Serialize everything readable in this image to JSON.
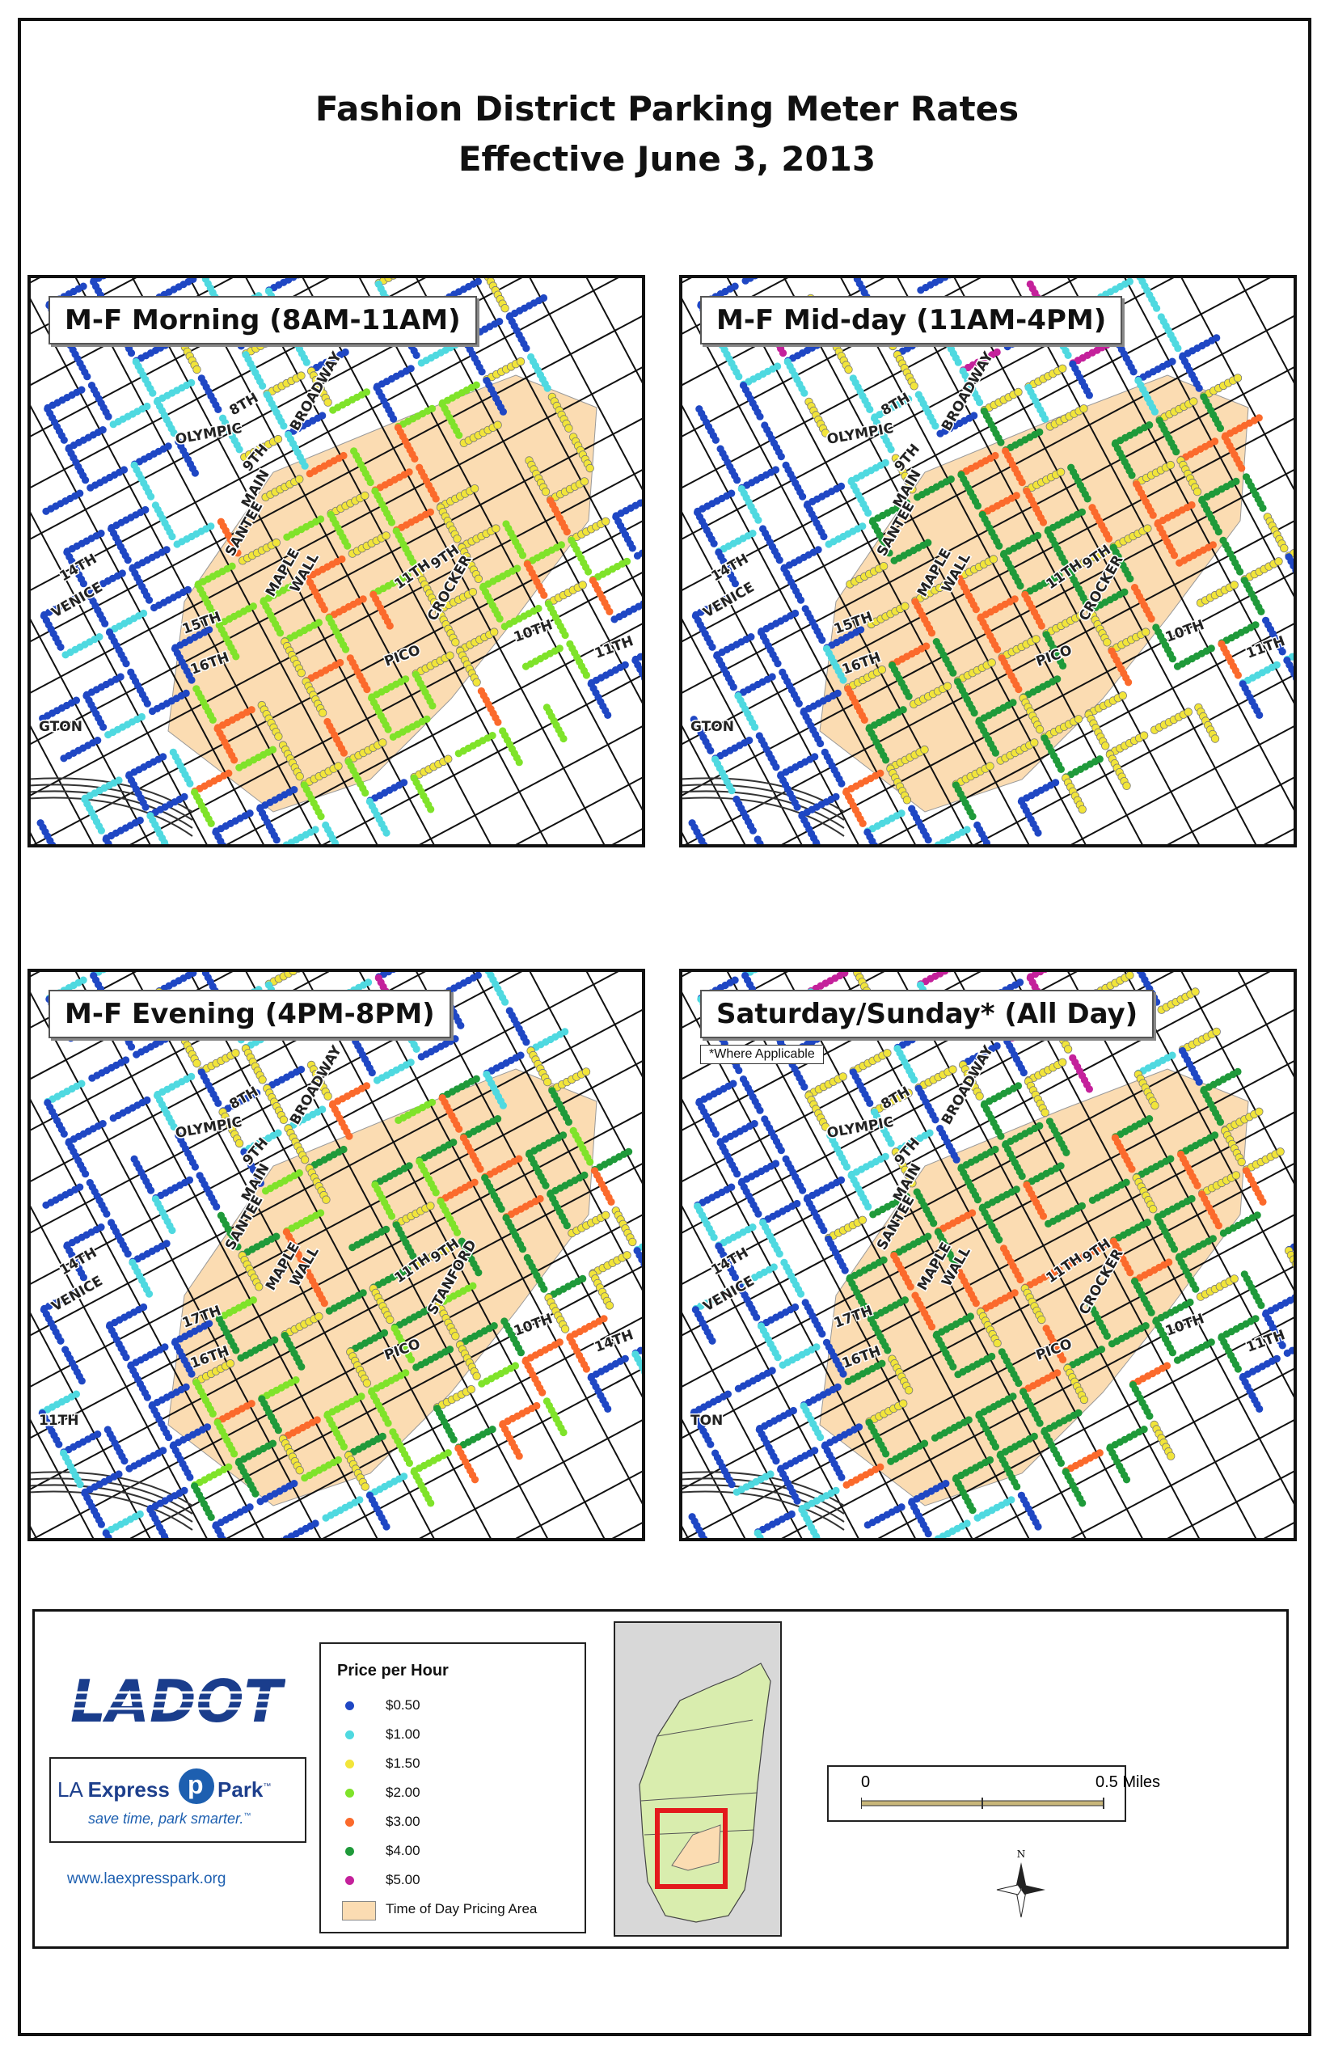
{
  "title_line1": "Fashion District Parking Meter Rates",
  "title_line2": "Effective June 3, 2013",
  "panels": [
    {
      "label": "M-F Morning (8AM-11AM)",
      "note": "",
      "labels": [
        "8TH",
        "OLYMPIC",
        "BROADWAY",
        "9TH",
        "MAIN",
        "SANTEE",
        "MAPLE",
        "WALL",
        "11TH",
        "9TH",
        "CROCKER",
        "10TH",
        "14TH",
        "VENICE",
        "15TH",
        "16TH",
        "PICO",
        "11TH",
        "GTON"
      ]
    },
    {
      "label": "M-F Mid-day (11AM-4PM)",
      "note": "",
      "labels": [
        "8TH",
        "OLYMPIC",
        "BROADWAY",
        "9TH",
        "MAIN",
        "SANTEE",
        "MAPLE",
        "WALL",
        "11TH",
        "9TH",
        "CROCKER",
        "10TH",
        "14TH",
        "VENICE",
        "15TH",
        "16TH",
        "PICO",
        "11TH",
        "GTON"
      ]
    },
    {
      "label": "M-F Evening (4PM-8PM)",
      "note": "",
      "labels": [
        "8TH",
        "OLYMPIC",
        "BROADWAY",
        "9TH",
        "MAIN",
        "SANTEE",
        "MAPLE",
        "WALL",
        "11TH",
        "9TH",
        "STANFORD",
        "10TH",
        "14TH",
        "VENICE",
        "17TH",
        "16TH",
        "PICO",
        "14TH",
        "11TH"
      ]
    },
    {
      "label": "Saturday/Sunday* (All Day)",
      "note": "*Where Applicable",
      "labels": [
        "8TH",
        "OLYMPIC",
        "BROADWAY",
        "9TH",
        "MAIN",
        "SANTEE",
        "MAPLE",
        "WALL",
        "11TH",
        "9TH",
        "CROCKER",
        "10TH",
        "14TH",
        "VENICE",
        "17TH",
        "16TH",
        "PICO",
        "11TH",
        "TON"
      ]
    }
  ],
  "legend": {
    "title": "Price per Hour",
    "items": [
      {
        "label": "$0.50",
        "color": "#1f47c4"
      },
      {
        "label": "$1.00",
        "color": "#4fd9e0"
      },
      {
        "label": "$1.50",
        "color": "#f2e53a"
      },
      {
        "label": "$2.00",
        "color": "#7fe32a"
      },
      {
        "label": "$3.00",
        "color": "#fb6a2c"
      },
      {
        "label": "$4.00",
        "color": "#1f9a3a"
      },
      {
        "label": "$5.00",
        "color": "#c4219b"
      }
    ],
    "area_label": "Time of Day Pricing Area",
    "area_color": "#fbdcb2"
  },
  "branding": {
    "ladot": "LADOT",
    "express_brand_pre": "LA ",
    "express_brand_bold": "Express",
    "express_brand_post": "Park",
    "express_tm": "™",
    "tagline": "save time, park smarter.",
    "tagline_tm": "™",
    "website": "www.laexpresspark.org"
  },
  "scalebar": {
    "start": "0",
    "end": "0.5 Miles"
  },
  "compass": {
    "north": "N"
  }
}
